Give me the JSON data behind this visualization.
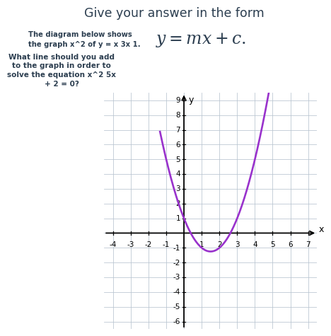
{
  "title_top": "Give your answer in the form",
  "formula": "$y = mx + c.$",
  "left_text_line1": "The diagram below shows",
  "left_text_line2": "the graph x^2 of y = x 3x 1.",
  "question_line1": "What line should you add",
  "question_line2": "to the graph in order to",
  "question_line3": "solve the equation x^2 5x",
  "question_line4": "+ 2 = 0?",
  "curve_color": "#9932CC",
  "bg_color": "#ffffff",
  "text_color": "#2c3e50",
  "xmin": -4.5,
  "xmax": 7.5,
  "ymin": -6.5,
  "ymax": 9.5,
  "xticks": [
    -4,
    -3,
    -2,
    -1,
    1,
    2,
    3,
    4,
    5,
    6,
    7
  ],
  "yticks": [
    -6,
    -5,
    -4,
    -3,
    -2,
    -1,
    1,
    2,
    3,
    4,
    5,
    6,
    7,
    8,
    9
  ],
  "grid_xticks": [
    -4,
    -3,
    -2,
    -1,
    0,
    1,
    2,
    3,
    4,
    5,
    6,
    7
  ],
  "grid_yticks": [
    -6,
    -5,
    -4,
    -3,
    -2,
    -1,
    0,
    1,
    2,
    3,
    4,
    5,
    6,
    7,
    8,
    9
  ],
  "xlabel": "x",
  "ylabel": "y",
  "curve_xstart": -1.35,
  "curve_xend": 4.9
}
